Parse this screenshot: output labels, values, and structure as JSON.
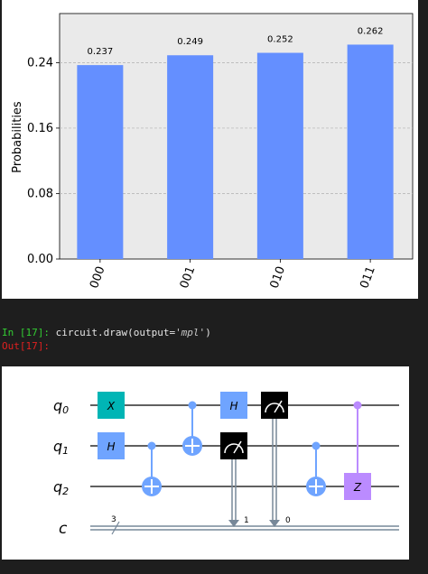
{
  "notebook": {
    "cell_in_prompt": "In [17]:",
    "cell_code_prefix": "circuit.draw(output=",
    "cell_code_arg": "'mpl'",
    "cell_code_suffix": ")",
    "cell_out_prompt": "Out[17]:"
  },
  "chart_data": {
    "type": "bar",
    "categories": [
      "000",
      "001",
      "010",
      "011"
    ],
    "values": [
      0.237,
      0.249,
      0.252,
      0.262
    ],
    "data_labels": [
      "0.237",
      "0.249",
      "0.252",
      "0.262"
    ],
    "ylabel": "Probabilities",
    "xlabel": "",
    "title": "",
    "ylim": [
      0,
      0.3
    ],
    "yticks": [
      "0.00",
      "0.08",
      "0.16",
      "0.24"
    ],
    "ytick_values": [
      0,
      0.08,
      0.16,
      0.24
    ],
    "grid": "horizontal dashed",
    "bar_color": "#648fff",
    "plot_background": "#eaeaea"
  },
  "circuit": {
    "qubits": [
      "q0",
      "q1",
      "q2"
    ],
    "classical_register": "c",
    "classical_width": "3",
    "gates": {
      "x": "X",
      "h": "H",
      "z": "Z"
    },
    "measure_targets": [
      "1",
      "0"
    ],
    "colors": {
      "x_gate": "#00b5b5",
      "h_gate": "#6fa4ff",
      "cnot": "#6fa4ff",
      "cz": "#bb8bff",
      "measure": "#000000",
      "classical_wire": "#778899"
    }
  }
}
